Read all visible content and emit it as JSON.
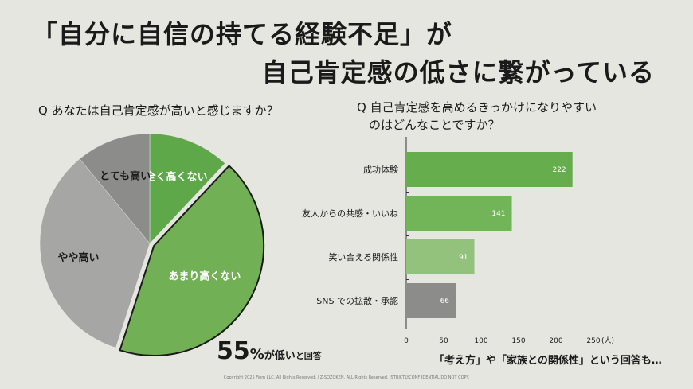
{
  "title": {
    "line1": "「自分に自信の持てる経験不足」が",
    "line2": "自己肯定感の低さに繋がっている"
  },
  "left_question": "Q あなたは自己肯定感が高いと感じますか？",
  "right_question": {
    "line1": "Q 自己肯定感を高めるきっかけになりやすい",
    "line2": "のはどんなことですか？"
  },
  "chart_data": [
    {
      "type": "pie",
      "title": "Q あなたは自己肯定感が高いと感じますか？",
      "slices": [
        {
          "label": "全く高くない",
          "value": 12,
          "color": "#5fa84a",
          "text_color": "#ffffff"
        },
        {
          "label": "あまり高くない",
          "value": 43,
          "color": "#72b055",
          "text_color": "#ffffff"
        },
        {
          "label": "やや高い",
          "value": 34,
          "color": "#a6a6a4",
          "text_color": "#1a1a1a"
        },
        {
          "label": "とても高い",
          "value": 11,
          "color": "#8c8c8a",
          "text_color": "#1a1a1a"
        }
      ]
    },
    {
      "type": "bar",
      "orientation": "horizontal",
      "title": "Q 自己肯定感を高めるきっかけになりやすいのはどんなことですか？",
      "categories": [
        "成功体験",
        "友人からの共感・いいね",
        "笑い合える関係性",
        "SNS での拡散・承認"
      ],
      "values": [
        222,
        141,
        91,
        66
      ],
      "colors": [
        "#66ad4d",
        "#72b458",
        "#93c27c",
        "#8c8c8a"
      ],
      "xlim": [
        0,
        250
      ],
      "xticks": [
        0,
        50,
        100,
        150,
        200,
        250
      ],
      "unit": "(人)"
    }
  ],
  "summary": {
    "big": "55",
    "pct": "%",
    "rest": "が低い",
    "small": "と回答"
  },
  "footnote": "「考え方」や「家族との関係性」という回答も…",
  "copyright": "Copyright 2025 Fiom LLC. All Rights Reserved.  / Z-SOZOKEN. ALL Rights Reserved. ISTRICTLYCONF IDENTIAL DO NOT COPY."
}
